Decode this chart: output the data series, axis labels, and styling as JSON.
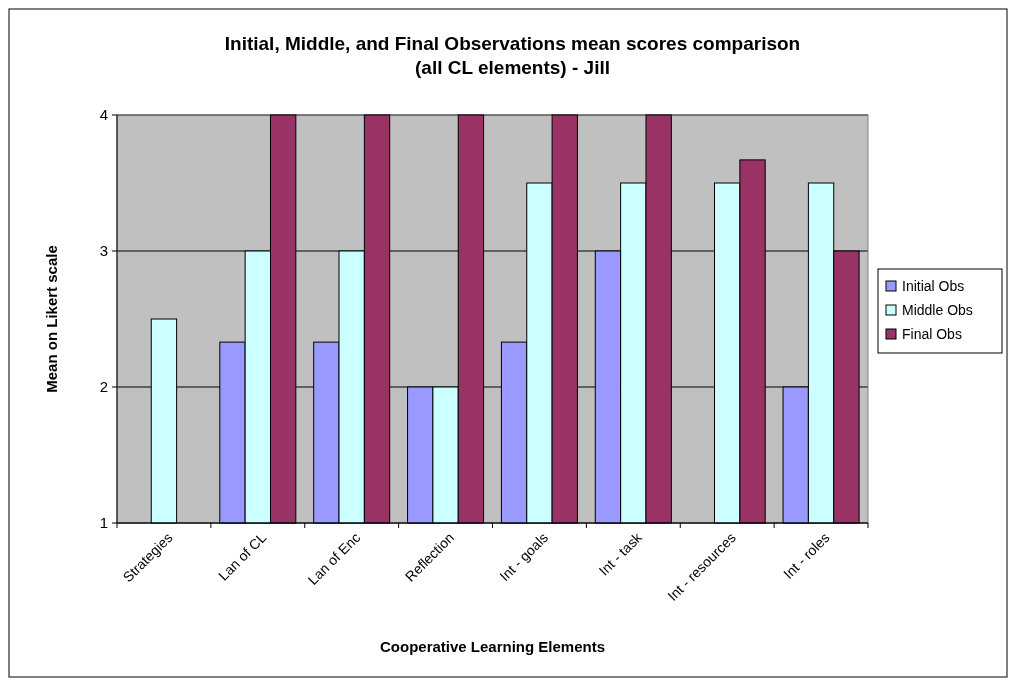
{
  "chart_data": {
    "type": "bar",
    "title": "Initial, Middle, and Final Observations mean scores comparison (all CL elements) - Jill",
    "xlabel": "Cooperative Learning Elements",
    "ylabel": "Mean on Likert scale",
    "categories": [
      "Strategies",
      "Lan of CL",
      "Lan of Enc",
      "Reflection",
      "Int - goals",
      "Int - task",
      "Int - resources",
      "Int - roles"
    ],
    "series": [
      {
        "name": "Initial Obs",
        "color": "#9999ff",
        "values": [
          null,
          2.33,
          2.33,
          2,
          2.33,
          3,
          null,
          2
        ]
      },
      {
        "name": "Middle Obs",
        "color": "#ccffff",
        "values": [
          2.5,
          3,
          3,
          2,
          3.5,
          3.5,
          3.5,
          3.5
        ]
      },
      {
        "name": "Final Obs",
        "color": "#993366",
        "values": [
          null,
          4,
          4,
          4,
          4,
          4,
          3.67,
          3
        ]
      }
    ],
    "ylim": [
      1,
      4
    ],
    "yticks": [
      1,
      2,
      3,
      4
    ],
    "grid": "y",
    "legend": "right"
  }
}
